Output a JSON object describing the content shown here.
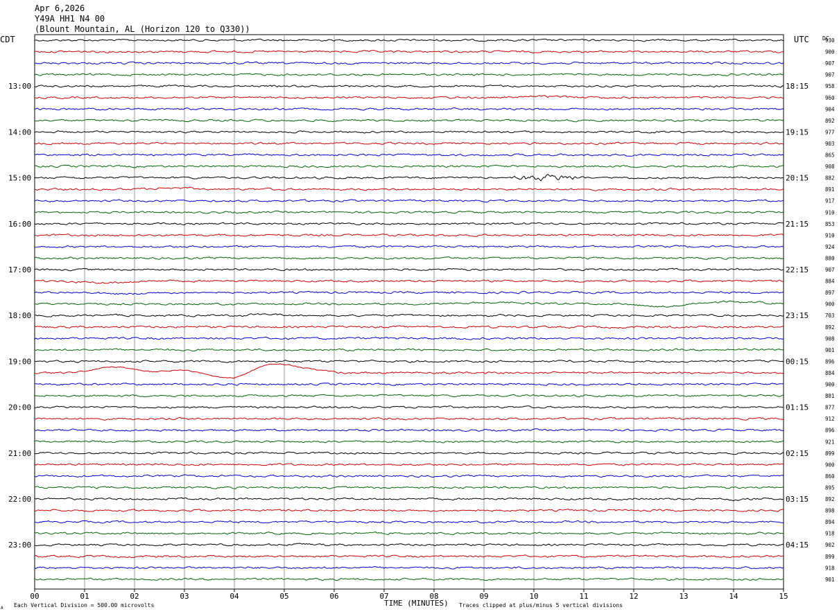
{
  "header": {
    "date": "Apr 6,2026",
    "station": "Y49A HH1 N4 00",
    "location": "(Blount Mountain, AL (Horizon 120 to Q330))"
  },
  "labels": {
    "left_tz": "CDT",
    "right_tz": "UTC",
    "dc_header": "DC",
    "xlabel": "TIME (MINUTES)",
    "scale_note": "Each Vertical Division =  500.00 microvolts",
    "clip_note": "Traces clipped at plus/minus 5 vertical divisions",
    "corner_mark": "A"
  },
  "chart_data": {
    "type": "line",
    "title": "Y49A HH1 N4 00",
    "xlabel": "TIME (MINUTES)",
    "xlim": [
      0,
      15
    ],
    "x_ticks": [
      "00",
      "01",
      "02",
      "03",
      "04",
      "05",
      "06",
      "07",
      "08",
      "09",
      "10",
      "11",
      "12",
      "13",
      "14",
      "15"
    ],
    "row_minutes": 15,
    "trace_colors": [
      "#000000",
      "#cc0000",
      "#0000cc",
      "#006600"
    ],
    "left_hour_labels": [
      "13:00",
      "14:00",
      "15:00",
      "16:00",
      "17:00",
      "18:00",
      "19:00",
      "20:00",
      "21:00",
      "22:00",
      "23:00"
    ],
    "right_hour_labels": [
      "18:15",
      "19:15",
      "20:15",
      "21:15",
      "22:15",
      "23:15",
      "00:15",
      "01:15",
      "02:15",
      "03:15",
      "04:15"
    ],
    "hour_label_first_row": 4,
    "dc_values": [
      "930",
      "900",
      "907",
      "907",
      "958",
      "960",
      "904",
      "892",
      "977",
      "903",
      "865",
      "908",
      "882",
      "891",
      "917",
      "910",
      "853",
      "910",
      "924",
      "880",
      "907",
      "884",
      "897",
      "900",
      "703",
      "892",
      "908",
      "901",
      "896",
      "884",
      "900",
      "881",
      "877",
      "912",
      "896",
      "921",
      "899",
      "900",
      "860",
      "895",
      "892",
      "898",
      "894",
      "918",
      "902",
      "899",
      "918",
      "901"
    ],
    "events": [
      {
        "row": 5,
        "start_min": 9.5,
        "end_min": 11.2,
        "type": "bump",
        "amp": 1.5
      },
      {
        "row": 12,
        "start_min": 9.3,
        "end_min": 11.3,
        "type": "burst",
        "amp": 3.2
      },
      {
        "row": 13,
        "start_min": 2.0,
        "end_min": 3.5,
        "type": "bump",
        "amp": 1.5
      },
      {
        "row": 21,
        "start_min": 0.5,
        "end_min": 2.2,
        "type": "offset",
        "amp": 2.5
      },
      {
        "row": 22,
        "start_min": 1.0,
        "end_min": 2.5,
        "type": "bump",
        "amp": -2.0
      },
      {
        "row": 23,
        "start_min": 8.0,
        "end_min": 15,
        "type": "dip",
        "amp": 4.0
      },
      {
        "row": 24,
        "start_min": 4.2,
        "end_min": 5.0,
        "type": "bump",
        "amp": 2.0
      },
      {
        "row": 29,
        "start_min": 0.6,
        "end_min": 6.0,
        "type": "quake",
        "amp": 9.0
      },
      {
        "row": 40,
        "start_min": 13.8,
        "end_min": 14.3,
        "type": "bump",
        "amp": -2.0
      },
      {
        "row": 44,
        "start_min": 5.0,
        "end_min": 5.8,
        "type": "bump",
        "amp": 1.5
      }
    ]
  }
}
